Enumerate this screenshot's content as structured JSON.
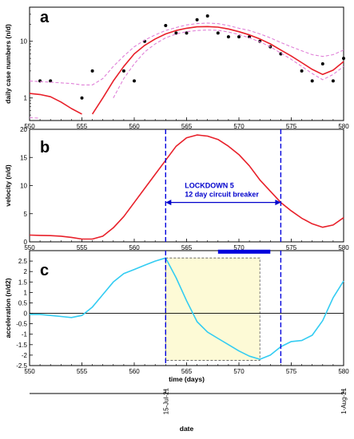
{
  "chart_data": [
    {
      "panel": "a",
      "type": "line",
      "ylabel": "daily case numbers (n/d)",
      "xlim": [
        550,
        580
      ],
      "ylim": [
        0.4,
        40
      ],
      "yscale": "log",
      "x_ticks": [
        "550",
        "555",
        "560",
        "565",
        "570",
        "575",
        "580"
      ],
      "y_ticks": [
        "1",
        "10"
      ],
      "series": [
        {
          "role": "data points",
          "color": "#000000",
          "x": [
            551,
            552,
            555,
            556,
            559,
            560,
            561,
            563,
            564,
            565,
            566,
            567,
            568,
            569,
            570,
            571,
            572,
            573,
            574,
            576,
            577,
            578,
            579,
            580
          ],
          "y": [
            2.0,
            2.0,
            1.0,
            3.0,
            3.0,
            2.0,
            10,
            19,
            14,
            14,
            24,
            28,
            14,
            12,
            12,
            12,
            10,
            8,
            6,
            3,
            2,
            4,
            2,
            5
          ]
        },
        {
          "role": "fit",
          "color": "#e8202a",
          "x": [
            550,
            551,
            552,
            553,
            554,
            555
          ],
          "y": [
            1.2,
            1.15,
            1.05,
            0.85,
            0.65,
            0.52
          ]
        },
        {
          "role": "fit",
          "color": "#e8202a",
          "x": [
            556,
            557,
            558,
            559,
            560,
            561,
            562,
            563,
            564,
            565,
            566,
            567,
            568,
            569,
            570,
            571,
            572,
            573,
            574,
            575,
            576,
            577,
            578,
            579,
            580
          ],
          "y": [
            0.52,
            1.0,
            2.0,
            3.6,
            6.0,
            8.5,
            11,
            13.5,
            15.5,
            17,
            18,
            18.2,
            17.8,
            16.5,
            14.8,
            13,
            11,
            9,
            7,
            5.5,
            4.2,
            3.2,
            2.6,
            3.1,
            4.4
          ]
        },
        {
          "role": "confidence band",
          "color": "#e080d8",
          "x": [
            550,
            551,
            552,
            553,
            554,
            555,
            556,
            557,
            558,
            559,
            560,
            561,
            562,
            563,
            564,
            565,
            566,
            567,
            568,
            569,
            570,
            571,
            572,
            573,
            574,
            575,
            576,
            577,
            578,
            579,
            580
          ],
          "y": [
            2.0,
            1.95,
            1.9,
            1.85,
            1.8,
            1.7,
            1.7,
            2.2,
            3.6,
            5.5,
            8.0,
            10.5,
            13,
            15.5,
            17.5,
            19.5,
            20.5,
            21,
            20.5,
            19,
            17,
            15.5,
            13.5,
            11.5,
            9.5,
            8,
            6.8,
            5.8,
            5.4,
            5.8,
            7.0
          ]
        },
        {
          "role": "confidence band",
          "color": "#e080d8",
          "x": [
            550,
            551
          ],
          "y": [
            0.45,
            0.44
          ]
        },
        {
          "role": "confidence band",
          "color": "#e080d8",
          "x": [
            558,
            559,
            560,
            561,
            562,
            563,
            564,
            565,
            566,
            567,
            568,
            569,
            570,
            571,
            572,
            573,
            574,
            575,
            576,
            577,
            578,
            579,
            580
          ],
          "y": [
            1.0,
            2.2,
            4.0,
            6.5,
            9.0,
            11.5,
            13.5,
            14.8,
            15.5,
            15.8,
            15.6,
            14.6,
            13.2,
            11.5,
            9.8,
            8.0,
            6.2,
            4.8,
            3.6,
            2.7,
            2.1,
            2.6,
            3.6
          ]
        }
      ]
    },
    {
      "panel": "b",
      "type": "line",
      "ylabel": "velocity (n/d)",
      "xlim": [
        550,
        580
      ],
      "ylim": [
        0,
        20
      ],
      "x_ticks": [
        "550",
        "555",
        "560",
        "565",
        "570",
        "575",
        "580"
      ],
      "y_ticks": [
        "0",
        "5",
        "10",
        "15",
        "20"
      ],
      "series": [
        {
          "color": "#e8202a",
          "x": [
            550,
            551,
            552,
            553,
            554,
            555,
            556,
            557,
            558,
            559,
            560,
            561,
            562,
            563,
            564,
            565,
            566,
            567,
            568,
            569,
            570,
            571,
            572,
            573,
            574,
            575,
            576,
            577,
            578,
            579,
            580
          ],
          "y": [
            1.2,
            1.15,
            1.1,
            1.0,
            0.8,
            0.5,
            0.5,
            1.0,
            2.5,
            4.5,
            7.0,
            9.5,
            12,
            14.5,
            17,
            18.5,
            19,
            18.8,
            18.2,
            17,
            15.5,
            13.5,
            11,
            9,
            7,
            5.5,
            4.2,
            3.2,
            2.6,
            3.0,
            4.3
          ]
        }
      ],
      "vlines": [
        563,
        574
      ],
      "annotation": {
        "line1": "LOCKDOWN 5",
        "line2": "12 day circuit breaker"
      }
    },
    {
      "panel": "c",
      "type": "line",
      "ylabel": "acceleration (n/d2)",
      "xlabel": "time (days)",
      "xlim": [
        550,
        580
      ],
      "ylim": [
        -2.5,
        3
      ],
      "x_ticks": [
        "550",
        "555",
        "560",
        "565",
        "570",
        "575",
        "580"
      ],
      "y_ticks": [
        "-2.5",
        "-2",
        "-1.5",
        "-1",
        "-0.5",
        "0",
        "0.5",
        "1",
        "1.5",
        "2",
        "2.5"
      ],
      "series": [
        {
          "color": "#33ccf2",
          "x": [
            550,
            551,
            552,
            553,
            554,
            555,
            556,
            557,
            558,
            559,
            560,
            561,
            562,
            563,
            564,
            565,
            566,
            567,
            568,
            569,
            570,
            571,
            572,
            573,
            574,
            575,
            576,
            577,
            578,
            579,
            580
          ],
          "y": [
            -0.05,
            -0.05,
            -0.1,
            -0.15,
            -0.2,
            -0.1,
            0.3,
            0.9,
            1.5,
            1.9,
            2.1,
            2.3,
            2.5,
            2.65,
            1.7,
            0.6,
            -0.4,
            -0.9,
            -1.2,
            -1.5,
            -1.8,
            -2.05,
            -2.2,
            -2.0,
            -1.6,
            -1.35,
            -1.3,
            -1.05,
            -0.35,
            0.75,
            1.55
          ]
        }
      ],
      "vlines": [
        563,
        574
      ],
      "highlight_box": {
        "x": [
          563,
          572
        ],
        "y": [
          -2.25,
          2.65
        ]
      },
      "bar": {
        "x": [
          568,
          573
        ],
        "y": 2.95
      }
    }
  ],
  "date_axis": {
    "label": "date",
    "ticks": [
      {
        "day": 563,
        "label": "15-Jul-21"
      },
      {
        "day": 580,
        "label": "1-Aug-21"
      }
    ]
  }
}
